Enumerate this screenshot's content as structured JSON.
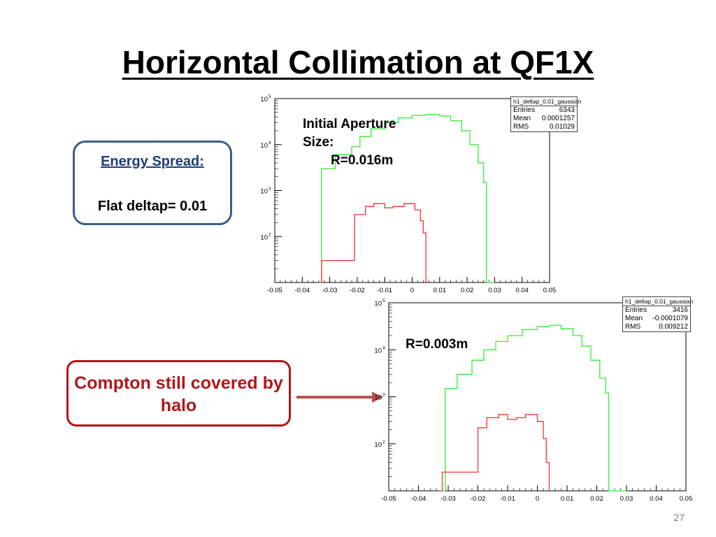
{
  "slide": {
    "title": "Horizontal Collimation at QF1X",
    "page_number": "27"
  },
  "energy_box": {
    "heading": "Energy Spread:",
    "text": "Flat deltap= 0.01"
  },
  "compton_box": {
    "text": "Compton still covered by  halo"
  },
  "colors": {
    "green_series": "#33ee33",
    "red_series": "#ee3333",
    "energy_border": "#3b5f8c",
    "compton_border": "#b1171b",
    "arrow": "#c0504d"
  },
  "chart_data": [
    {
      "type": "histogram",
      "annotation": [
        "Initial Aperture",
        "Size:",
        "R=0.016m"
      ],
      "stats": {
        "name": "h1_deltap_0.01_gaussian",
        "entries_label": "Entries",
        "entries": "6343",
        "mean_label": "Mean",
        "mean": "0.0001257",
        "rms_label": "RMS",
        "rms": "0.01029"
      },
      "x_ticks": [
        "-0.05",
        "-0.04",
        "-0.03",
        "-0.02",
        "-0.01",
        "0",
        "0.01",
        "0.02",
        "0.03",
        "0.04",
        "0.05"
      ],
      "xlim": [
        -0.05,
        0.05
      ],
      "ylog": true,
      "ylim": [
        10,
        100000
      ],
      "y_ticks": [
        100,
        1000,
        10000,
        100000
      ],
      "y_tick_labels": [
        "10",
        "10",
        "10",
        "10"
      ],
      "y_tick_sups": [
        "2",
        "3",
        "4",
        "5"
      ],
      "series": [
        {
          "color": "green",
          "points": [
            [
              -0.034,
              10
            ],
            [
              -0.033,
              10
            ],
            [
              -0.033,
              3000
            ],
            [
              -0.028,
              6000
            ],
            [
              -0.022,
              9000
            ],
            [
              -0.019,
              15000
            ],
            [
              -0.015,
              22000
            ],
            [
              -0.01,
              30000
            ],
            [
              -0.005,
              38000
            ],
            [
              0.0,
              43000
            ],
            [
              0.005,
              45000
            ],
            [
              0.01,
              42000
            ],
            [
              0.014,
              33000
            ],
            [
              0.018,
              20000
            ],
            [
              0.021,
              10000
            ],
            [
              0.024,
              4000
            ],
            [
              0.026,
              1500
            ],
            [
              0.027,
              10
            ],
            [
              0.03,
              10
            ]
          ]
        },
        {
          "color": "red",
          "points": [
            [
              -0.034,
              10
            ],
            [
              -0.033,
              30
            ],
            [
              -0.026,
              30
            ],
            [
              -0.022,
              30
            ],
            [
              -0.021,
              300
            ],
            [
              -0.017,
              450
            ],
            [
              -0.014,
              520
            ],
            [
              -0.01,
              420
            ],
            [
              -0.007,
              450
            ],
            [
              -0.003,
              520
            ],
            [
              0.001,
              380
            ],
            [
              0.003,
              220
            ],
            [
              0.004,
              120
            ],
            [
              0.005,
              10
            ]
          ]
        }
      ]
    },
    {
      "type": "histogram",
      "annotation": [
        "R=0.003m"
      ],
      "stats": {
        "name": "h1_deltap_0.01_gaussian",
        "entries_label": "Entries",
        "entries": "3416",
        "mean_label": "Mean",
        "mean": "-0.0001079",
        "rms_label": "RMS",
        "rms": "0.009212"
      },
      "x_ticks": [
        "-0.05",
        "-0.04",
        "-0.03",
        "-0.02",
        "-0.01",
        "0",
        "0.01",
        "0.02",
        "0.03",
        "0.04",
        "0.05"
      ],
      "xlim": [
        -0.05,
        0.05
      ],
      "ylog": true,
      "ylim": [
        10,
        100000
      ],
      "y_ticks": [
        100,
        1000,
        10000,
        100000
      ],
      "y_tick_labels": [
        "10",
        "10",
        "10",
        "10"
      ],
      "y_tick_sups": [
        "2",
        "3",
        "4",
        "5"
      ],
      "series": [
        {
          "color": "green",
          "points": [
            [
              -0.033,
              10
            ],
            [
              -0.032,
              10
            ],
            [
              -0.031,
              1500
            ],
            [
              -0.027,
              3000
            ],
            [
              -0.022,
              6000
            ],
            [
              -0.018,
              10000
            ],
            [
              -0.014,
              15000
            ],
            [
              -0.01,
              20000
            ],
            [
              -0.005,
              27000
            ],
            [
              0.0,
              31000
            ],
            [
              0.004,
              33000
            ],
            [
              0.008,
              28000
            ],
            [
              0.012,
              20000
            ],
            [
              0.015,
              12000
            ],
            [
              0.018,
              6000
            ],
            [
              0.021,
              2500
            ],
            [
              0.023,
              1200
            ],
            [
              0.024,
              10
            ],
            [
              0.03,
              10
            ]
          ]
        },
        {
          "color": "red",
          "points": [
            [
              -0.033,
              10
            ],
            [
              -0.032,
              25
            ],
            [
              -0.025,
              25
            ],
            [
              -0.021,
              25
            ],
            [
              -0.02,
              220
            ],
            [
              -0.017,
              360
            ],
            [
              -0.013,
              420
            ],
            [
              -0.01,
              330
            ],
            [
              -0.007,
              360
            ],
            [
              -0.004,
              420
            ],
            [
              0.0,
              300
            ],
            [
              0.002,
              130
            ],
            [
              0.003,
              40
            ],
            [
              0.004,
              10
            ]
          ]
        }
      ]
    }
  ]
}
